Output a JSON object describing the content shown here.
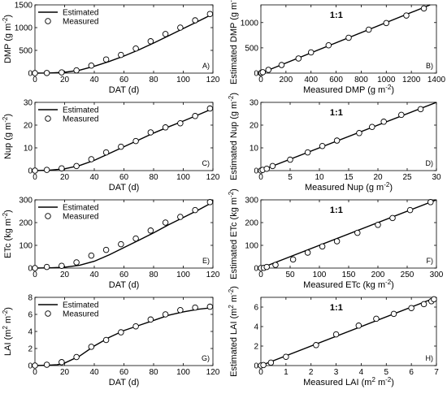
{
  "chart_data": [
    {
      "panel": "A)",
      "type": "line+scatter",
      "xlabel": "DAT (d)",
      "ylabel": "DMP (g m^-2)",
      "xlim": [
        0,
        120
      ],
      "ylim": [
        0,
        1500
      ],
      "xticks": [
        0,
        20,
        40,
        60,
        80,
        100,
        120
      ],
      "yticks": [
        0,
        500,
        1000,
        1500
      ],
      "legend": [
        "Estimated",
        "Measured"
      ],
      "legend_position": "top-left",
      "estimated": {
        "x": [
          0,
          10,
          20,
          30,
          40,
          50,
          60,
          70,
          80,
          90,
          100,
          110,
          120
        ],
        "y": [
          0,
          4,
          18,
          65,
          150,
          255,
          375,
          510,
          660,
          820,
          980,
          1140,
          1300
        ]
      },
      "measured": {
        "x": [
          0,
          8,
          18,
          28,
          38,
          48,
          58,
          68,
          78,
          88,
          98,
          108,
          118
        ],
        "y": [
          0,
          3,
          15,
          60,
          165,
          300,
          400,
          540,
          700,
          860,
          1000,
          1160,
          1300
        ]
      }
    },
    {
      "panel": "B)",
      "type": "scatter",
      "xlabel": "Measured DMP (g m^-2)",
      "ylabel": "Estimated DMP (g m^-2)",
      "xlim": [
        0,
        1400
      ],
      "ylim": [
        0,
        1350
      ],
      "xticks": [
        0,
        200,
        400,
        600,
        800,
        1000,
        1200,
        1400
      ],
      "yticks": [
        0,
        500,
        1000
      ],
      "annotation": "1:1",
      "points": {
        "x": [
          0,
          3,
          15,
          60,
          165,
          300,
          400,
          540,
          700,
          860,
          1000,
          1160,
          1300
        ],
        "y": [
          0,
          4,
          18,
          65,
          160,
          290,
          410,
          550,
          700,
          860,
          990,
          1140,
          1280
        ]
      }
    },
    {
      "panel": "C)",
      "type": "line+scatter",
      "xlabel": "DAT (d)",
      "ylabel": "Nup (g m^-2)",
      "xlim": [
        0,
        120
      ],
      "ylim": [
        0,
        30
      ],
      "xticks": [
        0,
        20,
        40,
        60,
        80,
        100,
        120
      ],
      "yticks": [
        0,
        10,
        20,
        30
      ],
      "legend": [
        "Estimated",
        "Measured"
      ],
      "legend_position": "top-left",
      "estimated": {
        "x": [
          0,
          10,
          20,
          30,
          40,
          50,
          60,
          70,
          80,
          90,
          100,
          110,
          120
        ],
        "y": [
          0,
          0.2,
          0.8,
          2.2,
          4.5,
          7.5,
          10.5,
          13.5,
          16.5,
          19.2,
          21.8,
          24.5,
          27.3
        ]
      },
      "measured": {
        "x": [
          0,
          8,
          18,
          28,
          38,
          48,
          58,
          68,
          78,
          88,
          98,
          108,
          118
        ],
        "y": [
          0,
          0.3,
          1,
          2,
          5,
          8,
          10.5,
          13,
          16.8,
          19,
          20.8,
          24,
          27.3
        ]
      }
    },
    {
      "panel": "D)",
      "type": "scatter",
      "xlabel": "Measured Nup (g m^-2)",
      "ylabel": "Estimated Nup (g m^-2)",
      "xlim": [
        0,
        30
      ],
      "ylim": [
        0,
        30
      ],
      "xticks": [
        0,
        5,
        10,
        15,
        20,
        25,
        30
      ],
      "yticks": [
        0,
        10,
        20,
        30
      ],
      "annotation": "1:1",
      "points": {
        "x": [
          0,
          0.3,
          1,
          2,
          5,
          8,
          10.5,
          13,
          16.8,
          19,
          21,
          24,
          27.3
        ],
        "y": [
          0,
          0.3,
          0.8,
          2,
          4.8,
          8,
          10.8,
          13.2,
          16.5,
          19.2,
          21.5,
          24.5,
          27
        ]
      }
    },
    {
      "panel": "E)",
      "type": "line+scatter",
      "xlabel": "DAT (d)",
      "ylabel": "ETc (kg m^-2)",
      "xlim": [
        0,
        120
      ],
      "ylim": [
        0,
        300
      ],
      "xticks": [
        0,
        20,
        40,
        60,
        80,
        100,
        120
      ],
      "yticks": [
        0,
        100,
        200,
        300
      ],
      "legend": [
        "Estimated",
        "Measured"
      ],
      "legend_position": "top-left",
      "estimated": {
        "x": [
          0,
          10,
          20,
          30,
          40,
          50,
          60,
          70,
          80,
          90,
          100,
          110,
          120
        ],
        "y": [
          0,
          1,
          4,
          12,
          30,
          58,
          90,
          122,
          155,
          190,
          222,
          255,
          290
        ]
      },
      "measured": {
        "x": [
          0,
          8,
          18,
          28,
          38,
          48,
          58,
          68,
          78,
          88,
          98,
          108,
          118
        ],
        "y": [
          0,
          5,
          10,
          25,
          55,
          80,
          105,
          130,
          165,
          200,
          225,
          255,
          290
        ]
      }
    },
    {
      "panel": "F)",
      "type": "scatter",
      "xlabel": "Measured ETc (kg m^-2)",
      "ylabel": "Estimated ETc (kg m^-2)",
      "xlim": [
        0,
        300
      ],
      "ylim": [
        0,
        300
      ],
      "xticks": [
        0,
        50,
        100,
        150,
        200,
        250,
        300
      ],
      "yticks": [
        0,
        100,
        200,
        300
      ],
      "annotation": "1:1",
      "points": {
        "x": [
          0,
          5,
          10,
          25,
          55,
          80,
          105,
          130,
          165,
          200,
          225,
          255,
          290
        ],
        "y": [
          0,
          1,
          5,
          14,
          38,
          68,
          95,
          118,
          155,
          190,
          220,
          255,
          290
        ]
      }
    },
    {
      "panel": "G)",
      "type": "line+scatter",
      "xlabel": "DAT (d)",
      "ylabel": "LAI (m^2 m^-2)",
      "xlim": [
        0,
        120
      ],
      "ylim": [
        0,
        8
      ],
      "xticks": [
        0,
        20,
        40,
        60,
        80,
        100,
        120
      ],
      "yticks": [
        0,
        2,
        4,
        6,
        8
      ],
      "legend": [
        "Estimated",
        "Measured"
      ],
      "legend_position": "top-left",
      "estimated": {
        "x": [
          0,
          10,
          15,
          20,
          30,
          40,
          50,
          60,
          70,
          80,
          90,
          100,
          110,
          120
        ],
        "y": [
          0,
          0.05,
          0.1,
          0.3,
          1.1,
          2.3,
          3.3,
          4.1,
          4.7,
          5.3,
          5.9,
          6.3,
          6.6,
          6.8
        ]
      },
      "measured": {
        "x": [
          0,
          8,
          18,
          28,
          38,
          48,
          58,
          68,
          78,
          88,
          98,
          108,
          118
        ],
        "y": [
          0,
          0.1,
          0.4,
          1,
          2.2,
          3,
          3.9,
          4.6,
          5.4,
          6,
          6.5,
          6.8,
          6.9
        ]
      }
    },
    {
      "panel": "H)",
      "type": "scatter",
      "xlabel": "Measured LAI (m^2 m^-2)",
      "ylabel": "Estimated LAI (m^2 m^-2)",
      "xlim": [
        0,
        7
      ],
      "ylim": [
        0,
        7
      ],
      "xticks": [
        0,
        1,
        2,
        3,
        4,
        5,
        6,
        7
      ],
      "yticks": [
        0,
        2,
        4,
        6
      ],
      "annotation": "1:1",
      "points": {
        "x": [
          0,
          0.1,
          0.4,
          1,
          2.2,
          3,
          3.9,
          4.6,
          5.3,
          6,
          6.5,
          6.8,
          6.9
        ],
        "y": [
          0,
          0.05,
          0.3,
          0.9,
          2.1,
          3.2,
          4.1,
          4.8,
          5.3,
          5.9,
          6.3,
          6.6,
          6.8
        ]
      }
    }
  ]
}
